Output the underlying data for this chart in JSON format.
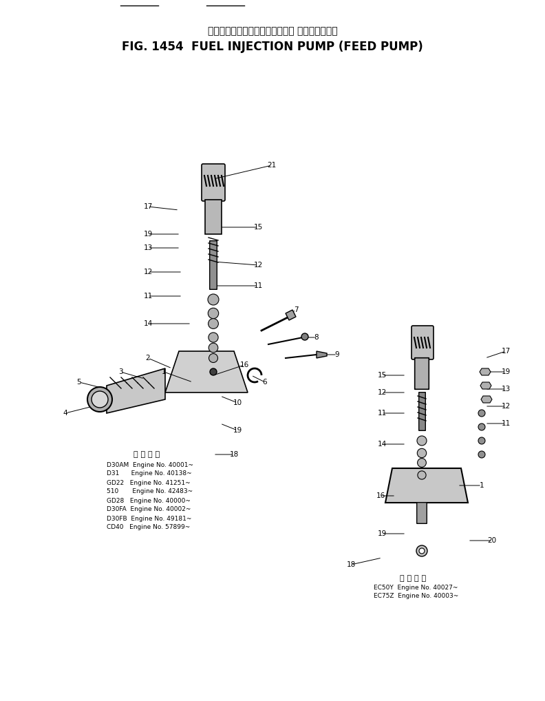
{
  "title_jp": "フぇエルインジェクションポンプ フィードポンプ",
  "title_en": "FIG. 1454  FUEL INJECTION PUMP (FEED PUMP)",
  "bg_color": "#ffffff",
  "text_color": "#000000",
  "legend_left": [
    "D30AM  Engine No. 40001~",
    "D31      Engine No. 40138~",
    "GD22   Engine No. 41251~",
    "510       Engine No. 42483~",
    "GD28   Engine No. 40000~",
    "D30FA  Engine No. 40002~",
    "D30FB  Engine No. 49181~",
    "CD40   Engine No. 57899~"
  ],
  "legend_right": [
    "EC50Y  Engine No. 40027~",
    "EC75Z  Engine No. 40003~"
  ],
  "legend_header": "適 用 引 範"
}
